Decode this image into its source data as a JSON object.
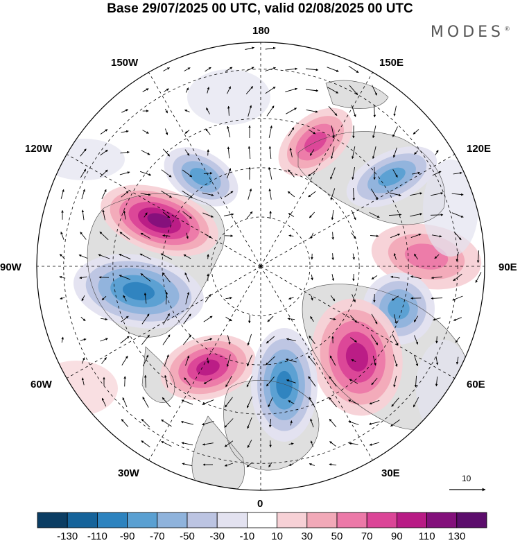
{
  "title": "Base 29/07/2025 00 UTC, valid 02/08/2025 00 UTC",
  "brand": "MODES",
  "brand_mark": "®",
  "longitude_labels": {
    "lon_180": "180",
    "lon_150e": "150E",
    "lon_120e": "120E",
    "lon_90e": "90E",
    "lon_60e": "60E",
    "lon_30e": "30E",
    "lon_0": "0",
    "lon_30w": "30W",
    "lon_60w": "60W",
    "lon_90w": "90W",
    "lon_120w": "120W",
    "lon_150w": "150W"
  },
  "reference_vector_label": "10",
  "colorbar": {
    "labels": [
      "-130",
      "-110",
      "-90",
      "-70",
      "-50",
      "-30",
      "-10",
      "10",
      "30",
      "50",
      "70",
      "90",
      "110",
      "130"
    ],
    "colors": [
      "#0b3d63",
      "#15639a",
      "#2d83bf",
      "#5aa0d2",
      "#8fb3dc",
      "#bcc4e2",
      "#e3e2f0",
      "#ffffff",
      "#f7d1d6",
      "#f2a9b8",
      "#ec79a8",
      "#db4597",
      "#b81b85",
      "#83107b",
      "#5c0d6c"
    ]
  },
  "map_colors": {
    "ocean_edge": "#000000",
    "grid": "#000000",
    "coast": "#444444",
    "land_shade": "#d9d9d9"
  },
  "anomalies": [
    {
      "id": "a1",
      "sign": "positive",
      "max_value": 110
    },
    {
      "id": "a2",
      "sign": "negative",
      "max_value": -70
    },
    {
      "id": "a3",
      "sign": "positive",
      "max_value": 70
    },
    {
      "id": "a4",
      "sign": "negative",
      "max_value": -70
    },
    {
      "id": "a5",
      "sign": "positive",
      "max_value": 50
    },
    {
      "id": "a6",
      "sign": "negative",
      "max_value": -70
    },
    {
      "id": "a7",
      "sign": "negative",
      "max_value": -90
    },
    {
      "id": "a8",
      "sign": "positive",
      "max_value": 90
    },
    {
      "id": "a9",
      "sign": "positive",
      "max_value": 90
    },
    {
      "id": "a10",
      "sign": "negative",
      "max_value": -90
    }
  ]
}
